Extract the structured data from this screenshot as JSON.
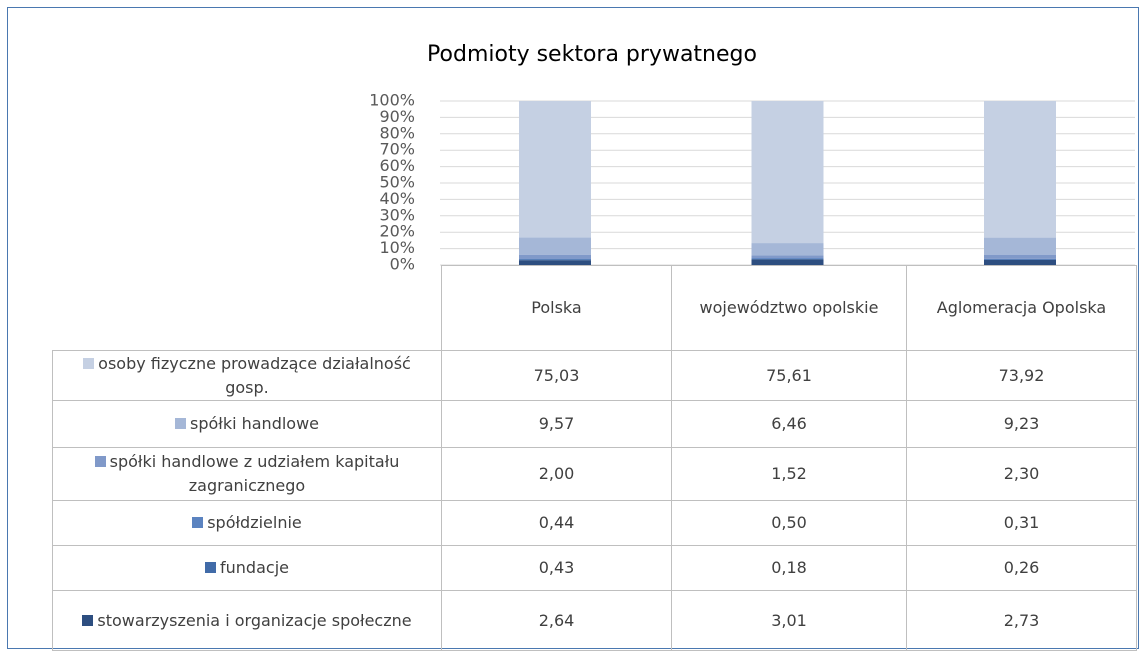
{
  "chart_data": {
    "type": "bar",
    "stacked": "percent",
    "title": "Podmioty sektora prywatnego",
    "categories": [
      "Polska",
      "województwo opolskie",
      "Aglomeracja Opolska"
    ],
    "ylim": [
      0,
      100
    ],
    "yticks": [
      {
        "value": 0,
        "label": "0%"
      },
      {
        "value": 10,
        "label": "10%"
      },
      {
        "value": 20,
        "label": "20%"
      },
      {
        "value": 30,
        "label": "30%"
      },
      {
        "value": 40,
        "label": "40%"
      },
      {
        "value": 50,
        "label": "50%"
      },
      {
        "value": 60,
        "label": "60%"
      },
      {
        "value": 70,
        "label": "70%"
      },
      {
        "value": 80,
        "label": "80%"
      },
      {
        "value": 90,
        "label": "90%"
      },
      {
        "value": 100,
        "label": "100%"
      }
    ],
    "grid": true,
    "series": [
      {
        "name": "osoby fizyczne prowadzące działalność gosp.",
        "color": "#c5d0e3",
        "values": [
          75.03,
          75.61,
          73.92
        ],
        "value_labels": [
          "75,03",
          "75,61",
          "73,92"
        ]
      },
      {
        "name": "spółki handlowe",
        "color": "#a5b7d7",
        "values": [
          9.57,
          6.46,
          9.23
        ],
        "value_labels": [
          "9,57",
          "6,46",
          "9,23"
        ]
      },
      {
        "name": "spółki handlowe z udziałem kapitału zagranicznego",
        "color": "#8099c9",
        "values": [
          2.0,
          1.52,
          2.3
        ],
        "value_labels": [
          "2,00",
          "1,52",
          "2,30"
        ]
      },
      {
        "name": "spółdzielnie",
        "color": "#5b83c0",
        "values": [
          0.44,
          0.5,
          0.31
        ],
        "value_labels": [
          "0,44",
          "0,50",
          "0,31"
        ]
      },
      {
        "name": "fundacje",
        "color": "#416ba8",
        "values": [
          0.43,
          0.18,
          0.26
        ],
        "value_labels": [
          "0,43",
          "0,18",
          "0,26"
        ]
      },
      {
        "name": "stowarzyszenia i organizacje społeczne",
        "color": "#2d4e80",
        "values": [
          2.64,
          3.01,
          2.73
        ],
        "value_labels": [
          "2,64",
          "3,01",
          "2,73"
        ]
      }
    ]
  }
}
